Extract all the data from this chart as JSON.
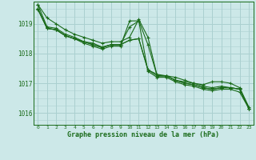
{
  "title": "Graphe pression niveau de la mer (hPa)",
  "background_color": "#cce8e8",
  "grid_color": "#aad0d0",
  "line_color": "#1a6b1a",
  "xlim": [
    -0.5,
    23.5
  ],
  "ylim": [
    1015.6,
    1019.75
  ],
  "yticks": [
    1016,
    1017,
    1018,
    1019
  ],
  "xticks": [
    0,
    1,
    2,
    3,
    4,
    5,
    6,
    7,
    8,
    9,
    10,
    11,
    12,
    13,
    14,
    15,
    16,
    17,
    18,
    19,
    20,
    21,
    22,
    23
  ],
  "series": [
    [
      1019.65,
      1019.2,
      1019.0,
      1018.8,
      1018.65,
      1018.55,
      1018.45,
      1018.35,
      1018.4,
      1018.4,
      1018.55,
      1019.15,
      1018.55,
      1017.25,
      1017.25,
      1017.2,
      1017.1,
      1017.0,
      1016.95,
      1017.05,
      1017.05,
      1017.0,
      1016.85,
      1016.2
    ],
    [
      1019.65,
      1018.9,
      1018.85,
      1018.65,
      1018.55,
      1018.4,
      1018.35,
      1018.22,
      1018.3,
      1018.3,
      1018.45,
      1018.5,
      1017.45,
      1017.3,
      1017.25,
      1017.1,
      1017.0,
      1016.95,
      1016.85,
      1016.8,
      1016.85,
      1016.85,
      1016.8,
      1016.15
    ],
    [
      1019.48,
      1018.85,
      1018.8,
      1018.6,
      1018.5,
      1018.35,
      1018.25,
      1018.15,
      1018.25,
      1018.25,
      1019.1,
      1019.1,
      1017.4,
      1017.2,
      1017.2,
      1017.05,
      1016.95,
      1016.9,
      1016.8,
      1016.75,
      1016.8,
      1016.8,
      1016.7,
      1016.15
    ],
    [
      1019.52,
      1018.85,
      1018.8,
      1018.6,
      1018.5,
      1018.4,
      1018.3,
      1018.2,
      1018.3,
      1018.3,
      1018.45,
      1018.5,
      1017.45,
      1017.25,
      1017.25,
      1017.1,
      1017.0,
      1016.95,
      1016.85,
      1016.8,
      1016.85,
      1016.85,
      1016.8,
      1016.15
    ],
    [
      1019.52,
      1018.85,
      1018.8,
      1018.6,
      1018.5,
      1018.4,
      1018.3,
      1018.2,
      1018.3,
      1018.3,
      1018.9,
      1019.1,
      1018.3,
      1017.25,
      1017.25,
      1017.1,
      1017.05,
      1017.0,
      1016.9,
      1016.85,
      1016.9,
      1016.85,
      1016.8,
      1016.15
    ]
  ]
}
